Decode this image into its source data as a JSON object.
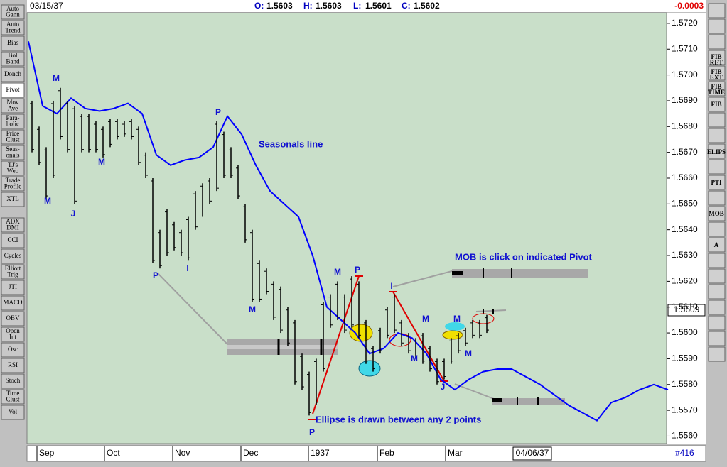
{
  "header": {
    "date": "03/15/37",
    "ohlc": [
      {
        "label": "O:",
        "value": "1.5603"
      },
      {
        "label": "H:",
        "value": "1.5603"
      },
      {
        "label": "L:",
        "value": "1.5601"
      },
      {
        "label": "C:",
        "value": "1.5602"
      }
    ],
    "change": "-0.0003"
  },
  "left_toolbar": {
    "indicators": [
      [
        "Auto",
        "Gann"
      ],
      [
        "Auto",
        "Trend"
      ],
      [
        "Bias"
      ],
      [
        "Bol",
        "Band"
      ],
      [
        "Donch"
      ],
      [
        "Pivot"
      ],
      [
        "Mov",
        "Ave"
      ],
      [
        "Para-",
        "bolic"
      ],
      [
        "Price",
        "Clust"
      ],
      [
        "Seas-",
        "onals"
      ],
      [
        "TJ's",
        "Web"
      ],
      [
        "Trade",
        "Profile"
      ],
      [
        "XTL"
      ]
    ],
    "studies": [
      [
        "ADX",
        "DMI"
      ],
      [
        "CCI"
      ],
      [
        "Cycles"
      ],
      [
        "Elliott",
        "Trig"
      ],
      [
        "JTI"
      ],
      [
        "MACD"
      ],
      [
        "OBV"
      ],
      [
        "Open",
        "Int"
      ],
      [
        "Osc"
      ],
      [
        "RSI"
      ],
      [
        "Stoch"
      ],
      [
        "Time",
        "Clust"
      ],
      [
        "Vol"
      ]
    ]
  },
  "right_toolbar": {
    "labels": [
      [
        "FIB",
        "RET"
      ],
      [
        "FIB",
        "EXT"
      ],
      [
        "FIB",
        "TIME"
      ],
      [
        "FIB"
      ],
      [
        "ELIPS"
      ],
      [
        "PTI"
      ],
      [
        "MOB"
      ],
      [
        "A"
      ]
    ]
  },
  "chart": {
    "ylim": [
      1.55571,
      1.57241
    ],
    "yticks": [
      {
        "value": 1.572,
        "label": "1.5720"
      },
      {
        "value": 1.571,
        "label": "1.5710"
      },
      {
        "value": 1.57,
        "label": "1.5700"
      },
      {
        "value": 1.569,
        "label": "1.5690"
      },
      {
        "value": 1.568,
        "label": "1.5680"
      },
      {
        "value": 1.567,
        "label": "1.5670"
      },
      {
        "value": 1.566,
        "label": "1.5660"
      },
      {
        "value": 1.565,
        "label": "1.5650"
      },
      {
        "value": 1.564,
        "label": "1.5640"
      },
      {
        "value": 1.563,
        "label": "1.5630"
      },
      {
        "value": 1.562,
        "label": "1.5620"
      },
      {
        "value": 1.561,
        "label": "1.5610"
      },
      {
        "value": 1.56,
        "label": "1.5600"
      },
      {
        "value": 1.559,
        "label": "1.5590"
      },
      {
        "value": 1.558,
        "label": "1.5580"
      },
      {
        "value": 1.557,
        "label": "1.5570"
      },
      {
        "value": 1.556,
        "label": "1.5560"
      }
    ],
    "last_price": "1.5609",
    "xlabels": [
      "Sep",
      "Oct",
      "Nov",
      "Dec",
      "1937",
      "Feb",
      "Mar"
    ],
    "cursor_date": "04/06/37",
    "bar_count": "#416",
    "bars": [
      [
        1.569,
        1.567
      ],
      [
        1.568,
        1.5665
      ],
      [
        1.5672,
        1.5652
      ],
      [
        1.569,
        1.566
      ],
      [
        1.5695,
        1.5675
      ],
      [
        1.569,
        1.567
      ],
      [
        1.5688,
        1.565
      ],
      [
        1.5685,
        1.567
      ],
      [
        1.5685,
        1.567
      ],
      [
        1.5682,
        1.567
      ],
      [
        1.568,
        1.5668
      ],
      [
        1.5683,
        1.5672
      ],
      [
        1.5683,
        1.5675
      ],
      [
        1.5682,
        1.5676
      ],
      [
        1.5683,
        1.5675
      ],
      [
        1.568,
        1.5665
      ],
      [
        1.567,
        1.566
      ],
      [
        1.566,
        1.5627
      ],
      [
        1.564,
        1.5625
      ],
      [
        1.5648,
        1.563
      ],
      [
        1.5643,
        1.5632
      ],
      [
        1.564,
        1.563
      ],
      [
        1.5645,
        1.5628
      ],
      [
        1.5655,
        1.564
      ],
      [
        1.5658,
        1.5645
      ],
      [
        1.566,
        1.565
      ],
      [
        1.5682,
        1.5655
      ],
      [
        1.5678,
        1.566
      ],
      [
        1.5672,
        1.566
      ],
      [
        1.5665,
        1.5652
      ],
      [
        1.565,
        1.5635
      ],
      [
        1.564,
        1.5612
      ],
      [
        1.5628,
        1.5612
      ],
      [
        1.5625,
        1.5615
      ],
      [
        1.562,
        1.5605
      ],
      [
        1.5618,
        1.56
      ],
      [
        1.561,
        1.5595
      ],
      [
        1.5605,
        1.558
      ],
      [
        1.5592,
        1.5578
      ],
      [
        1.5585,
        1.5568
      ],
      [
        1.559,
        1.5572
      ],
      [
        1.5612,
        1.5585
      ],
      [
        1.5615,
        1.5602
      ],
      [
        1.562,
        1.5605
      ],
      [
        1.5615,
        1.56
      ],
      [
        1.5622,
        1.5602
      ],
      [
        1.562,
        1.5598
      ],
      [
        1.5605,
        1.5588
      ],
      [
        1.5595,
        1.5585
      ],
      [
        1.5602,
        1.5592
      ],
      [
        1.561,
        1.5598
      ],
      [
        1.5615,
        1.56
      ],
      [
        1.5605,
        1.5595
      ],
      [
        1.56,
        1.5592
      ],
      [
        1.5598,
        1.559
      ],
      [
        1.56,
        1.5588
      ],
      [
        1.5595,
        1.5585
      ],
      [
        1.559,
        1.558
      ],
      [
        1.559,
        1.5582
      ],
      [
        1.5598,
        1.5588
      ],
      [
        1.56,
        1.5592
      ],
      [
        1.5602,
        1.5595
      ],
      [
        1.5605,
        1.5598
      ],
      [
        1.5605,
        1.5598
      ],
      [
        1.5607,
        1.56
      ]
    ],
    "seasonal": [
      1.5713,
      1.5688,
      1.5685,
      1.5691,
      1.5687,
      1.5686,
      1.5687,
      1.5689,
      1.5685,
      1.5669,
      1.5665,
      1.5667,
      1.5668,
      1.5672,
      1.5684,
      1.5677,
      1.5665,
      1.5655,
      1.565,
      1.5645,
      1.563,
      1.561,
      1.5605,
      1.56,
      1.5592,
      1.5594,
      1.56,
      1.5598,
      1.5592,
      1.5582,
      1.5578,
      1.5582,
      1.5585,
      1.5586,
      1.5586,
      1.5583,
      1.558,
      1.5576,
      1.5572,
      1.5569,
      1.5566,
      1.5573,
      1.5575,
      1.5578,
      1.558,
      1.5578
    ],
    "pivot_labels": [
      "M",
      "M",
      "J",
      "M",
      "P",
      "P",
      "I",
      "M",
      "M",
      "P",
      "P",
      "I",
      "M",
      "M",
      "J",
      "M",
      "M"
    ],
    "notes": [
      "Seasonals line",
      "MOB is click on indicated Pivot",
      "Ellipse is drawn between any 2 points"
    ]
  }
}
